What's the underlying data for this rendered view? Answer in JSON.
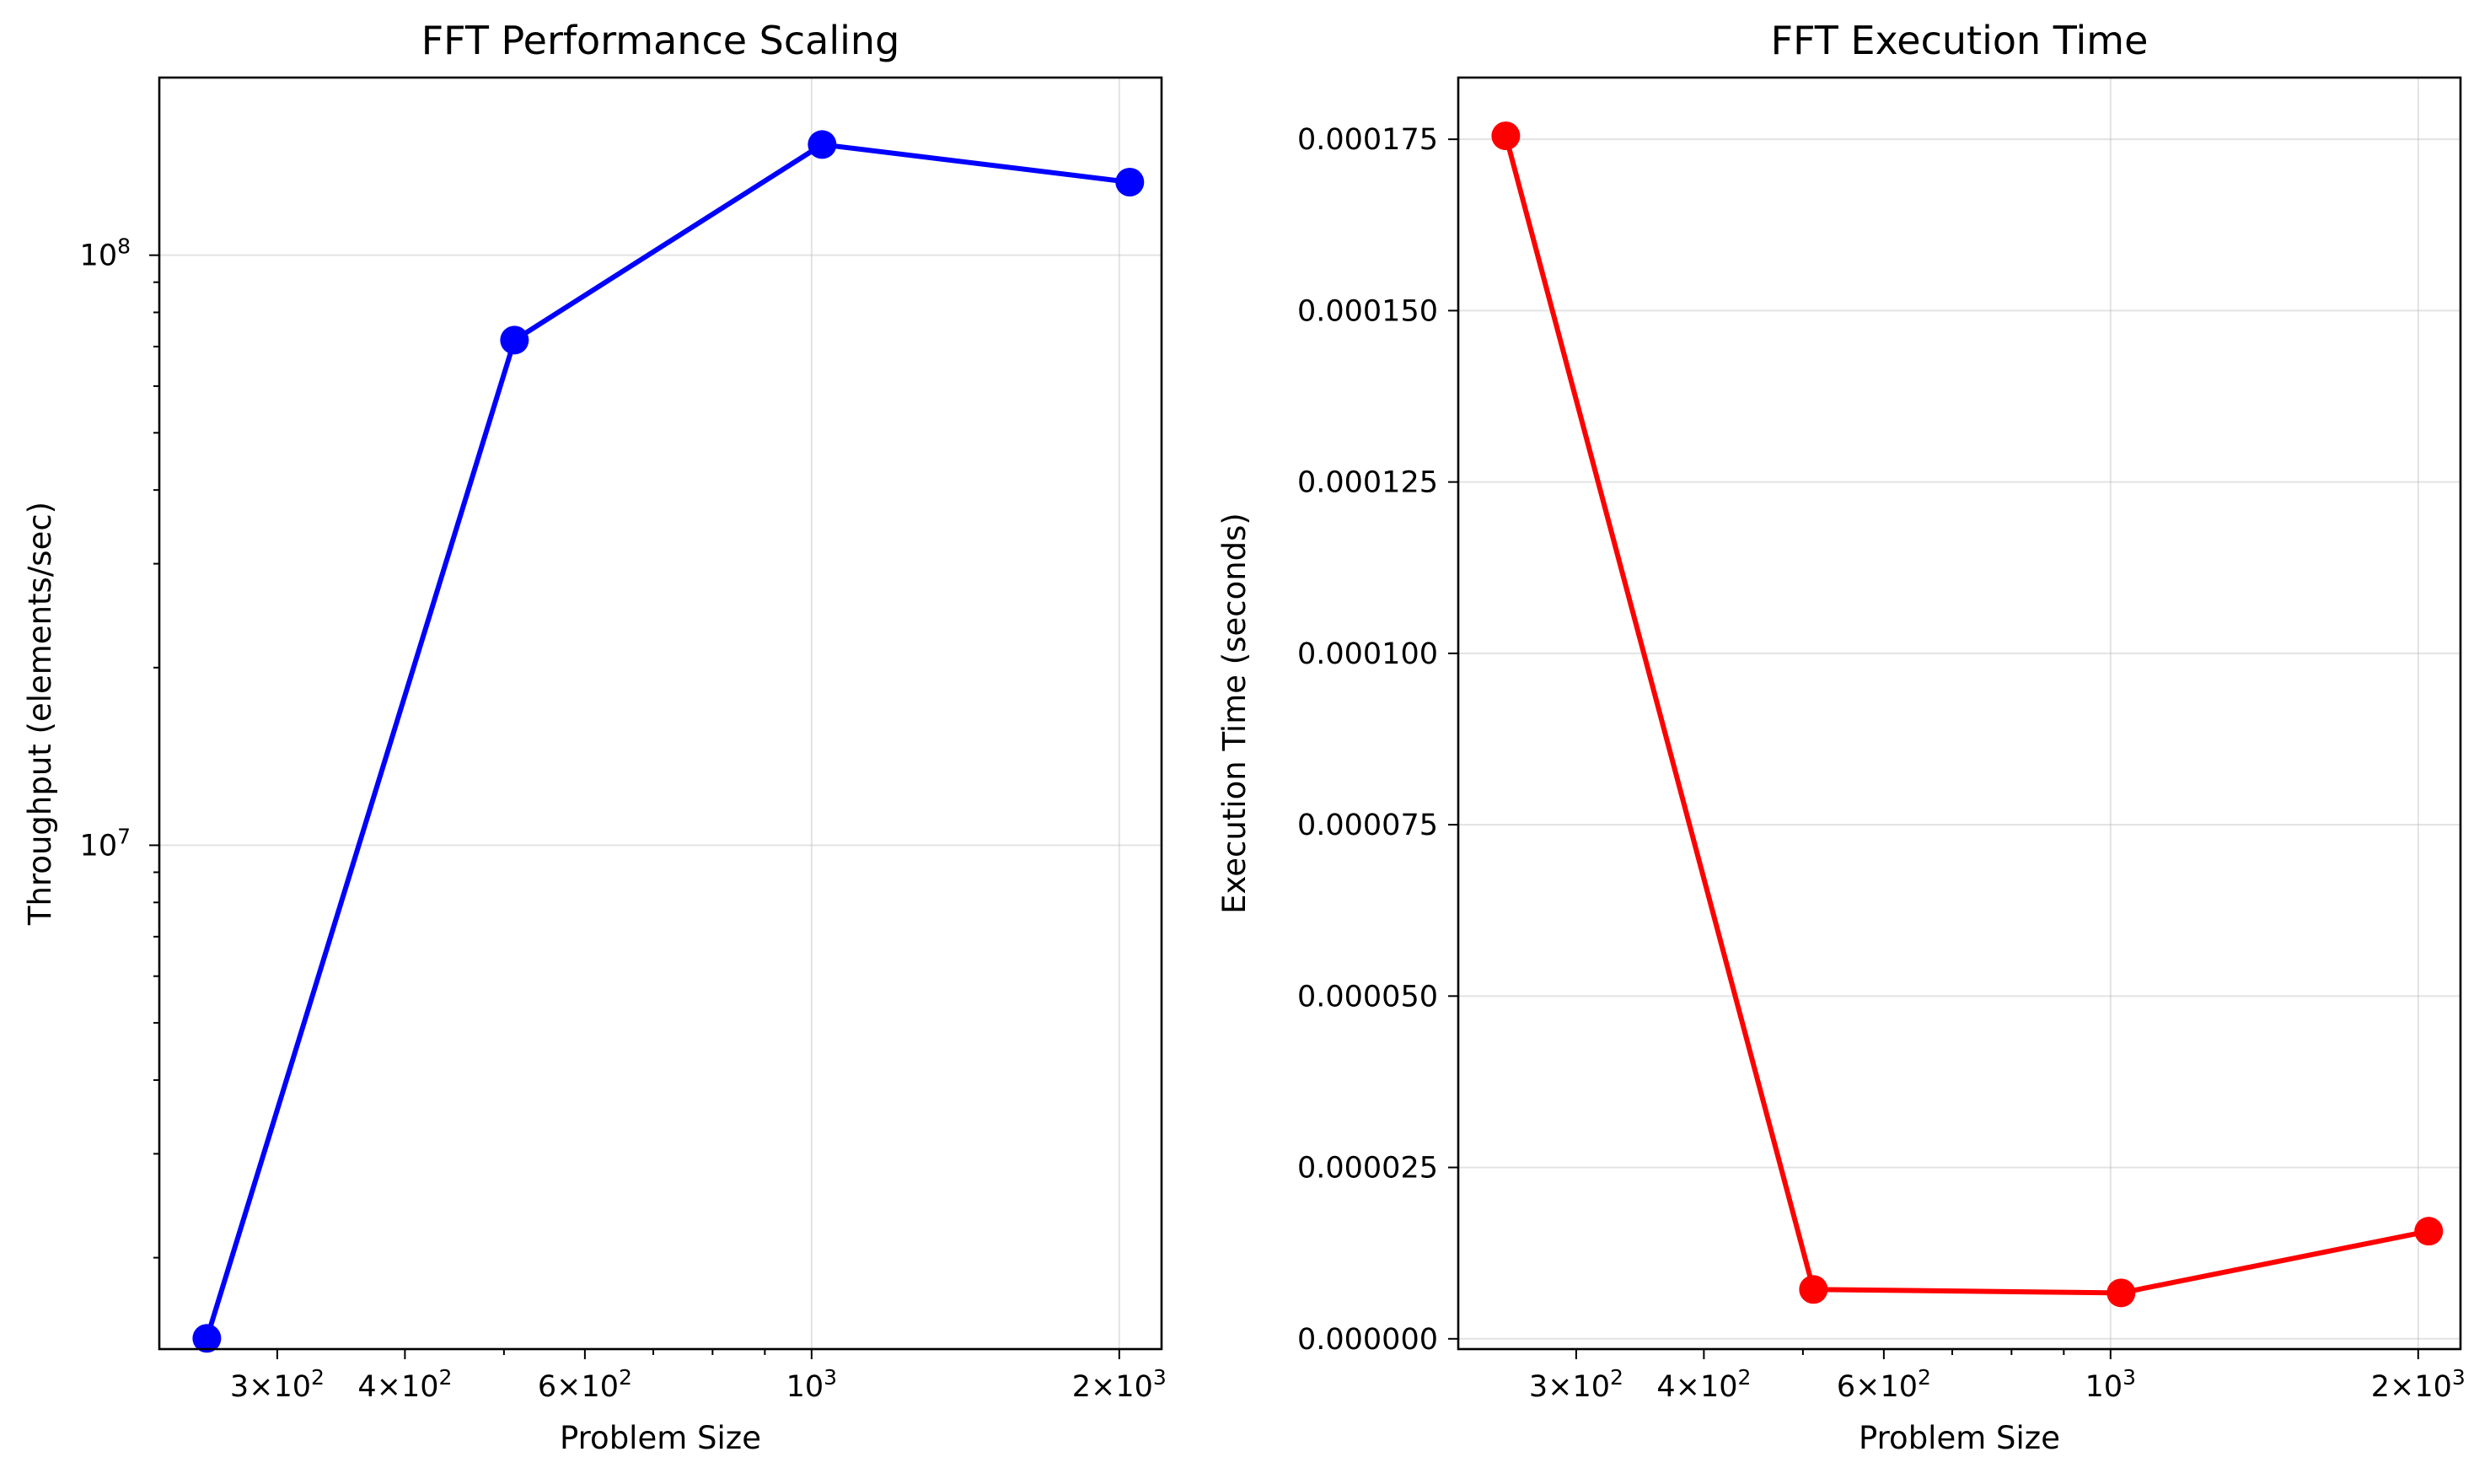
{
  "chart_data": [
    {
      "type": "line",
      "title": "FFT Performance Scaling",
      "xlabel": "Problem Size",
      "ylabel": "Throughput (elements/sec)",
      "xscale": "log",
      "yscale": "log",
      "xlim": [
        230,
        2200
      ],
      "ylim": [
        1400000,
        200000000
      ],
      "grid": true,
      "x": [
        256,
        512,
        1024,
        2048
      ],
      "series": [
        {
          "values": [
            1460000,
            71800000,
            154000000,
            133000000
          ],
          "color": "#0000ff",
          "marker": "circle"
        }
      ],
      "xticks": [
        {
          "value": 300,
          "mantissa": "3",
          "exponent": "2"
        },
        {
          "value": 400,
          "mantissa": "4",
          "exponent": "2"
        },
        {
          "value": 600,
          "mantissa": "6",
          "exponent": "2"
        },
        {
          "value": 1000,
          "mantissa": "",
          "exponent": "3"
        },
        {
          "value": 2000,
          "mantissa": "2",
          "exponent": "3"
        }
      ],
      "yticks": [
        {
          "value": 10000000,
          "base": "10",
          "exponent": "7"
        },
        {
          "value": 100000000,
          "base": "10",
          "exponent": "8"
        }
      ]
    },
    {
      "type": "line",
      "title": "FFT Execution Time",
      "xlabel": "Problem Size",
      "ylabel": "Execution Time (seconds)",
      "xscale": "log",
      "yscale": "linear",
      "xlim": [
        230,
        2200
      ],
      "ylim": [
        -1.5e-06,
        0.000184
      ],
      "grid": true,
      "x": [
        256,
        512,
        1024,
        2048
      ],
      "series": [
        {
          "values": [
            0.0001755,
            7.2e-06,
            6.7e-06,
            1.57e-05
          ],
          "color": "#ff0000",
          "marker": "circle"
        }
      ],
      "xticks": [
        {
          "value": 300,
          "mantissa": "3",
          "exponent": "2"
        },
        {
          "value": 400,
          "mantissa": "4",
          "exponent": "2"
        },
        {
          "value": 600,
          "mantissa": "6",
          "exponent": "2"
        },
        {
          "value": 1000,
          "mantissa": "",
          "exponent": "3"
        },
        {
          "value": 2000,
          "mantissa": "2",
          "exponent": "3"
        }
      ],
      "yticks": [
        {
          "value": 0,
          "label": "0.000000"
        },
        {
          "value": 2.5e-05,
          "label": "0.000025"
        },
        {
          "value": 5e-05,
          "label": "0.000050"
        },
        {
          "value": 7.5e-05,
          "label": "0.000075"
        },
        {
          "value": 0.0001,
          "label": "0.000100"
        },
        {
          "value": 0.000125,
          "label": "0.000125"
        },
        {
          "value": 0.00015,
          "label": "0.000150"
        },
        {
          "value": 0.000175,
          "label": "0.000175"
        }
      ]
    }
  ]
}
